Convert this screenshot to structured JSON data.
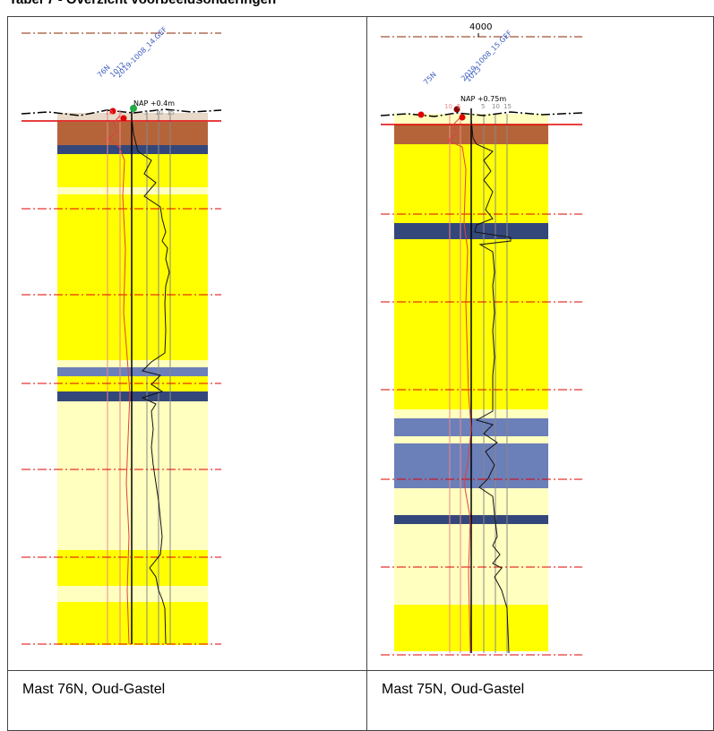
{
  "table_caption": "Tabel 7 - Overzicht voorbeeldsonderingen",
  "panels": [
    {
      "cpt_ids": [
        "76N",
        "1012",
        "2019-1008_14.GEF"
      ],
      "level_label": "NAP +0.4m",
      "scale_left": [
        "10",
        "5"
      ],
      "scale_right": [
        "5",
        "10",
        "15"
      ],
      "caption": "Mast 76N, Oud-Gastel"
    },
    {
      "top_label": "4000",
      "cpt_ids": [
        "75N",
        "2019-1008_15.GEF",
        "1013"
      ],
      "level_label": "NAP +0.75m",
      "scale_left": [
        "10",
        "5"
      ],
      "scale_right": [
        "5",
        "10",
        "15"
      ],
      "caption": "Mast 75N, Oud-Gastel"
    }
  ],
  "colors": {
    "sand": "#ffff00",
    "light_sand": "#ffffc0",
    "clay": "#a0522d",
    "peat_dark": "#34477a",
    "peat_light": "#6b7fb8",
    "level_line": "#e00000",
    "id_text": "#3a5bbf"
  }
}
